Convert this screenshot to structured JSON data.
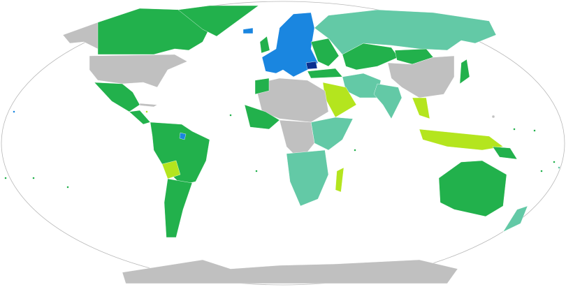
{
  "map": {
    "projection": "Robinson",
    "colors": {
      "green": "#22b14c",
      "teal": "#63c9a6",
      "lime": "#b4e51e",
      "blue": "#1a86e0",
      "navy": "#0a2f8f",
      "grey": "#c0c0c0",
      "ocean": "#ffffff",
      "outline": "#b8b8b8"
    }
  }
}
